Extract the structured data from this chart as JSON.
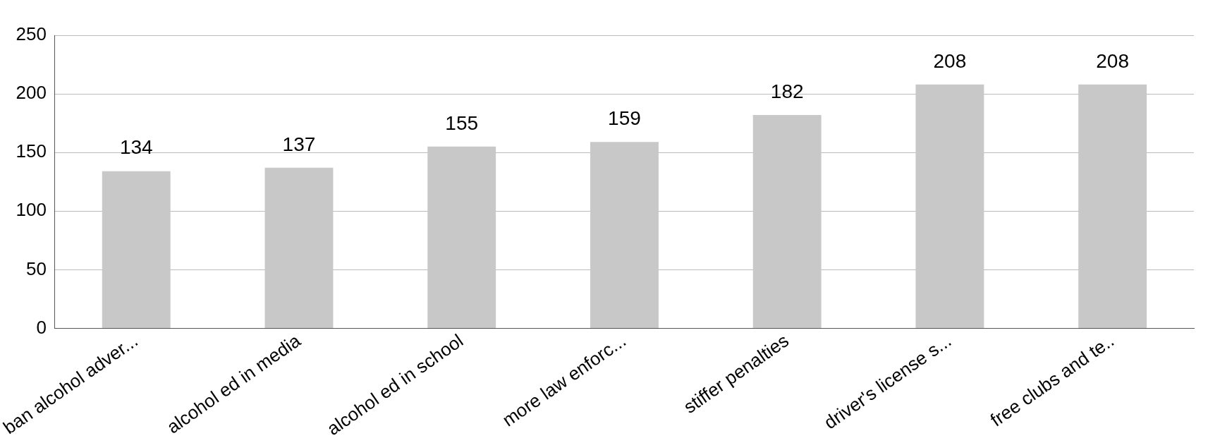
{
  "chart_data": {
    "type": "bar",
    "categories": [
      "ban alcohol adver...",
      "alcohol ed in media",
      "alcohol ed in school",
      "more law enforc...",
      "stiffer penalties",
      "driver's license s...",
      "free clubs and te.."
    ],
    "values": [
      134,
      137,
      155,
      159,
      182,
      208,
      208
    ],
    "color": "#c8c8c8",
    "ylim": [
      0,
      250
    ],
    "yticks": [
      0,
      50,
      100,
      150,
      200,
      250
    ],
    "grid": "y",
    "data_labels": true
  }
}
